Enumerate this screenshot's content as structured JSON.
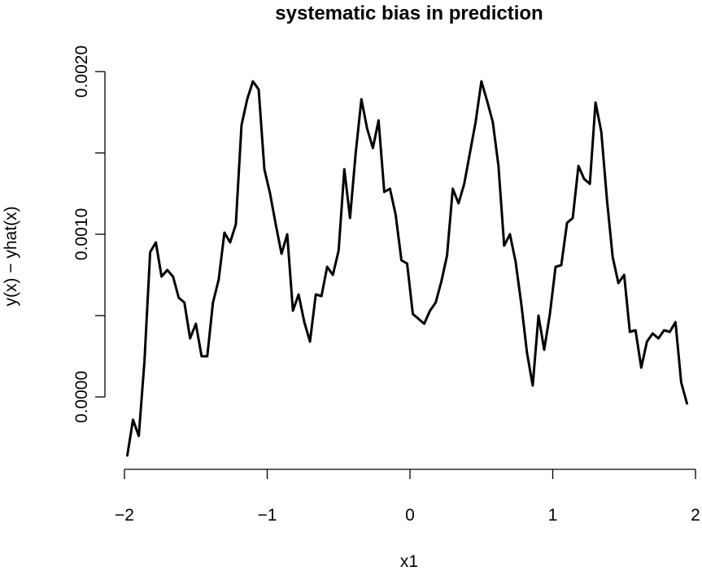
{
  "chart_data": {
    "type": "line",
    "title": "systematic bias in prediction",
    "xlabel": "x1",
    "ylabel": "y(x) − yhat(x)",
    "xlim": [
      -2,
      2
    ],
    "ylim": [
      -0.0004,
      0.002
    ],
    "x_ticks": [
      {
        "value": -2,
        "label": "−2"
      },
      {
        "value": -1,
        "label": "−1"
      },
      {
        "value": 0,
        "label": "0"
      },
      {
        "value": 1,
        "label": "1"
      },
      {
        "value": 2,
        "label": "2"
      }
    ],
    "y_ticks": [
      {
        "value": 0.0,
        "label": "0.0000"
      },
      {
        "value": 0.0005,
        "label": ""
      },
      {
        "value": 0.001,
        "label": "0.0010"
      },
      {
        "value": 0.0015,
        "label": ""
      },
      {
        "value": 0.002,
        "label": "0.0020"
      }
    ],
    "grid": false,
    "legend": "none",
    "series": [
      {
        "color": "#000000",
        "x": [
          -1.98,
          -1.94,
          -1.9,
          -1.86,
          -1.82,
          -1.78,
          -1.74,
          -1.7,
          -1.66,
          -1.62,
          -1.58,
          -1.54,
          -1.5,
          -1.46,
          -1.42,
          -1.38,
          -1.34,
          -1.3,
          -1.26,
          -1.22,
          -1.18,
          -1.14,
          -1.1,
          -1.06,
          -1.02,
          -0.98,
          -0.94,
          -0.9,
          -0.86,
          -0.82,
          -0.78,
          -0.74,
          -0.7,
          -0.66,
          -0.62,
          -0.58,
          -0.54,
          -0.5,
          -0.46,
          -0.42,
          -0.38,
          -0.34,
          -0.3,
          -0.26,
          -0.22,
          -0.18,
          -0.14,
          -0.1,
          -0.06,
          -0.02,
          0.02,
          0.06,
          0.1,
          0.14,
          0.18,
          0.22,
          0.26,
          0.3,
          0.34,
          0.38,
          0.42,
          0.46,
          0.5,
          0.54,
          0.58,
          0.62,
          0.66,
          0.7,
          0.74,
          0.78,
          0.82,
          0.86,
          0.9,
          0.94,
          0.98,
          1.02,
          1.06,
          1.1,
          1.14,
          1.18,
          1.22,
          1.26,
          1.3,
          1.34,
          1.38,
          1.42,
          1.46,
          1.5,
          1.54,
          1.58,
          1.62,
          1.66,
          1.7,
          1.74,
          1.78,
          1.82,
          1.86,
          1.9,
          1.94
        ],
        "y": [
          -0.00036,
          -0.00014,
          -0.00024,
          0.00022,
          0.00089,
          0.00095,
          0.00074,
          0.00078,
          0.00074,
          0.00061,
          0.00058,
          0.00036,
          0.00045,
          0.00025,
          0.00025,
          0.00058,
          0.00072,
          0.00101,
          0.00095,
          0.00106,
          0.00167,
          0.00183,
          0.00194,
          0.00189,
          0.0014,
          0.00125,
          0.00106,
          0.00088,
          0.001,
          0.00053,
          0.00063,
          0.00046,
          0.00034,
          0.00063,
          0.00062,
          0.0008,
          0.00075,
          0.0009,
          0.0014,
          0.0011,
          0.0015,
          0.00183,
          0.00165,
          0.00153,
          0.0017,
          0.00126,
          0.00128,
          0.00112,
          0.00084,
          0.00082,
          0.00051,
          0.00048,
          0.00045,
          0.00053,
          0.00058,
          0.00071,
          0.00087,
          0.00128,
          0.00119,
          0.00131,
          0.0015,
          0.00169,
          0.00194,
          0.00182,
          0.00169,
          0.00142,
          0.00093,
          0.001,
          0.00083,
          0.00057,
          0.00027,
          7e-05,
          0.0005,
          0.00029,
          0.00051,
          0.0008,
          0.00081,
          0.00107,
          0.0011,
          0.00142,
          0.00134,
          0.00131,
          0.00181,
          0.00163,
          0.00121,
          0.00086,
          0.0007,
          0.00075,
          0.0004,
          0.00041,
          0.00018,
          0.00034,
          0.00039,
          0.00036,
          0.00041,
          0.0004,
          0.00046,
          9e-05,
          -4e-05
        ]
      }
    ]
  }
}
